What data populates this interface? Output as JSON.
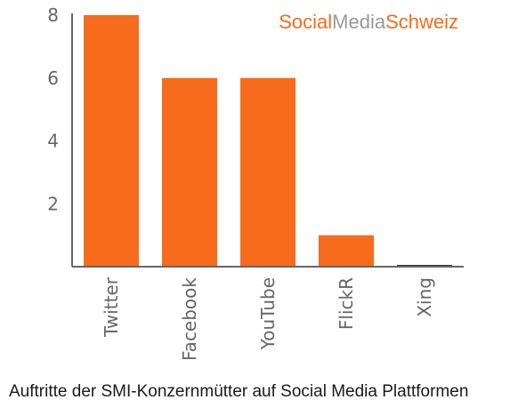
{
  "brand": {
    "part1": "Social",
    "part2": "Media",
    "part3": "Schweiz"
  },
  "caption": "Auftritte der SMI-Konzernmütter auf Social Media Plattformen",
  "colors": {
    "bar": "#f76b1c",
    "zero_bar": "#333333",
    "axis": "#666666",
    "brand_orange": "#f76b1c",
    "brand_gray": "#999999"
  },
  "chart_data": {
    "type": "bar",
    "categories": [
      "Twitter",
      "Facebook",
      "YouTube",
      "FlickR",
      "Xing"
    ],
    "values": [
      8,
      6,
      6,
      1,
      0
    ],
    "title": "",
    "xlabel": "",
    "ylabel": "",
    "ylim": [
      0,
      8
    ],
    "yticks": [
      2,
      4,
      6,
      8
    ],
    "grid": false,
    "legend": "none"
  }
}
